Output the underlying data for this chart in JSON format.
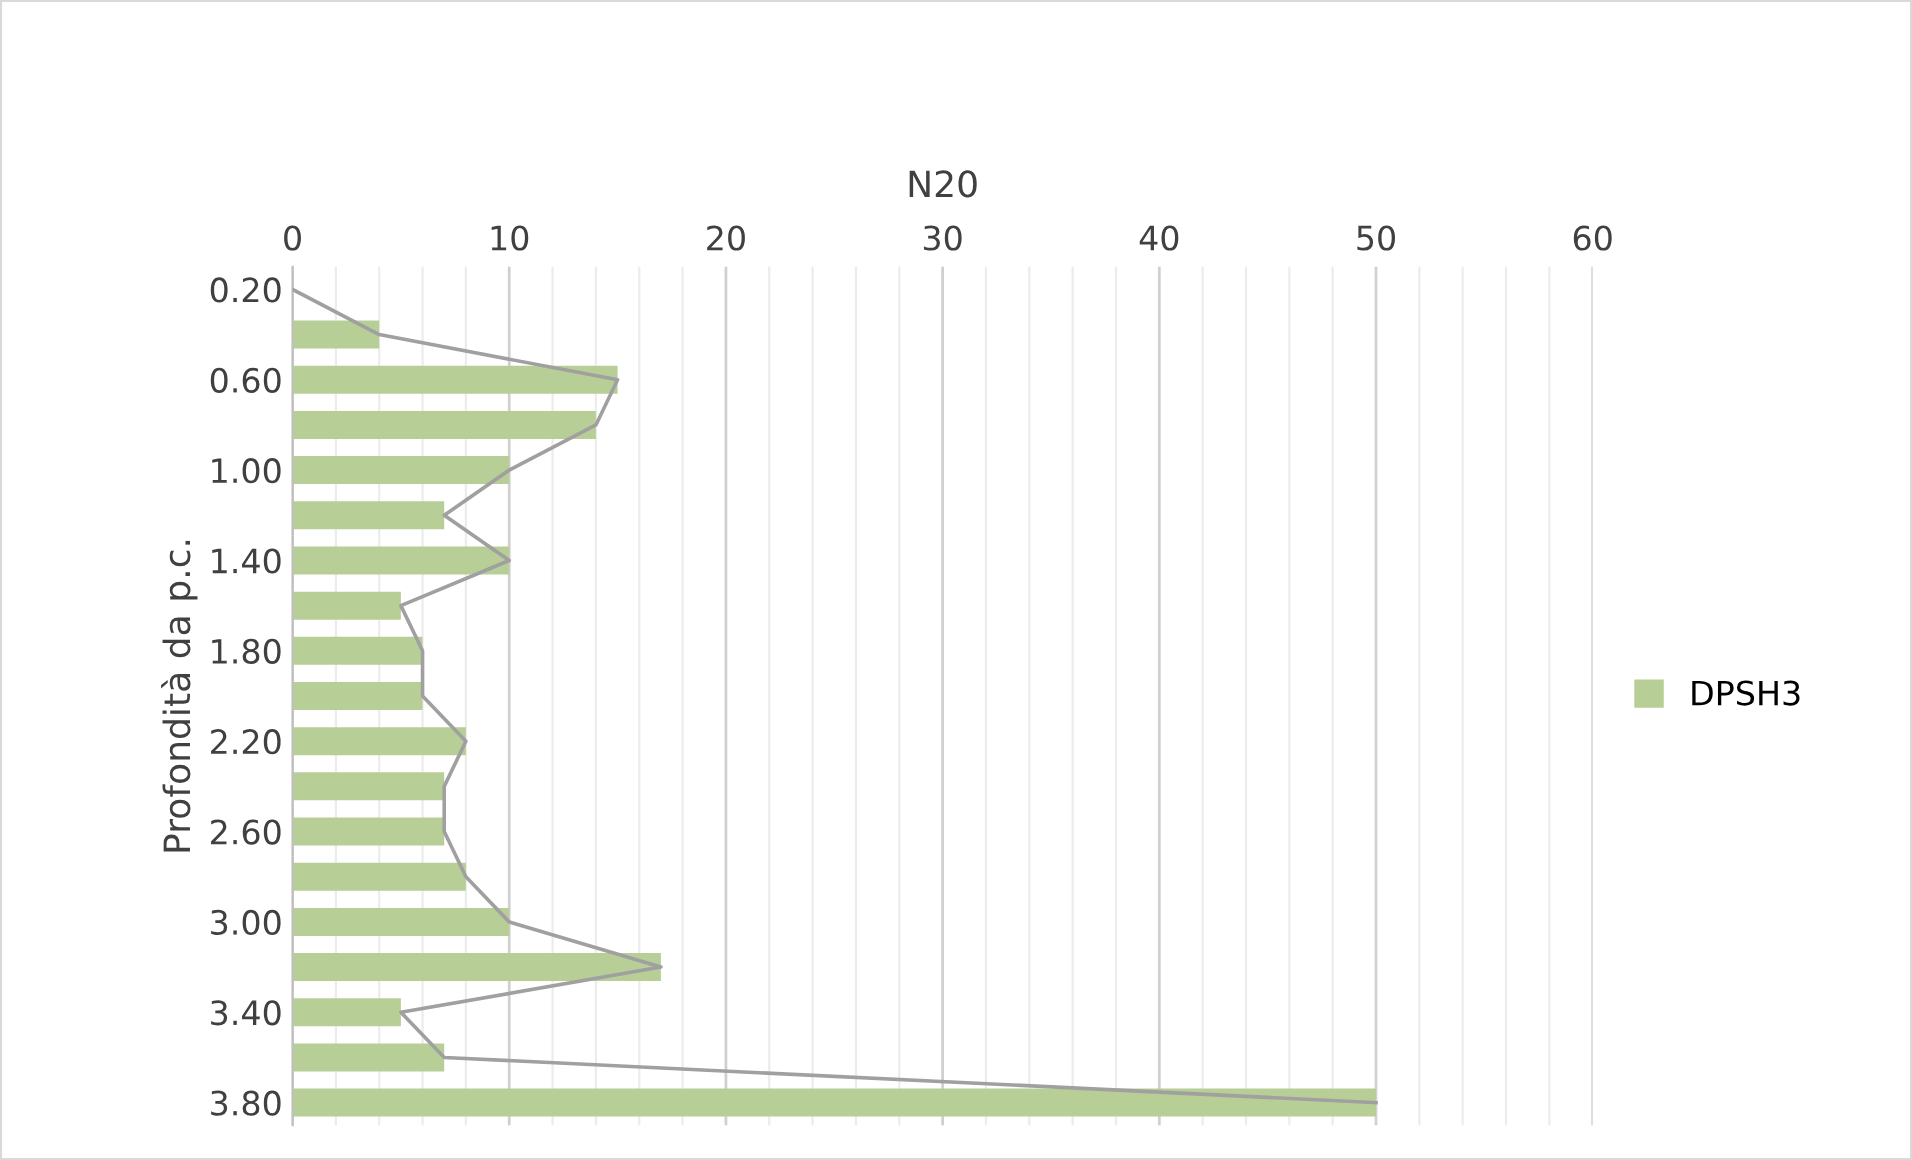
{
  "chart_data": {
    "type": "bar",
    "orientation": "horizontal",
    "xlabel": "N20",
    "ylabel": "Profondità da p.c.",
    "categories": [
      "0.20",
      null,
      "0.60",
      null,
      "1.00",
      null,
      "1.40",
      null,
      "1.80",
      null,
      "2.20",
      null,
      "2.60",
      null,
      "3.00",
      null,
      "3.40",
      null,
      "3.80"
    ],
    "series": [
      {
        "name": "DPSH3",
        "color": "#b7cf96",
        "values": [
          0,
          4,
          15,
          14,
          10,
          7,
          10,
          5,
          6,
          6,
          8,
          7,
          7,
          8,
          10,
          17,
          5,
          7,
          50
        ]
      },
      {
        "type": "line",
        "color": "#a0a0a0",
        "values": [
          0,
          4,
          15,
          14,
          10,
          7,
          10,
          5,
          6,
          6,
          8,
          7,
          7,
          8,
          10,
          17,
          5,
          7,
          50
        ]
      }
    ],
    "xlim": [
      0,
      60
    ],
    "xticks": [
      0,
      10,
      20,
      30,
      40,
      50,
      60
    ],
    "grid": "x",
    "legend": "right"
  }
}
